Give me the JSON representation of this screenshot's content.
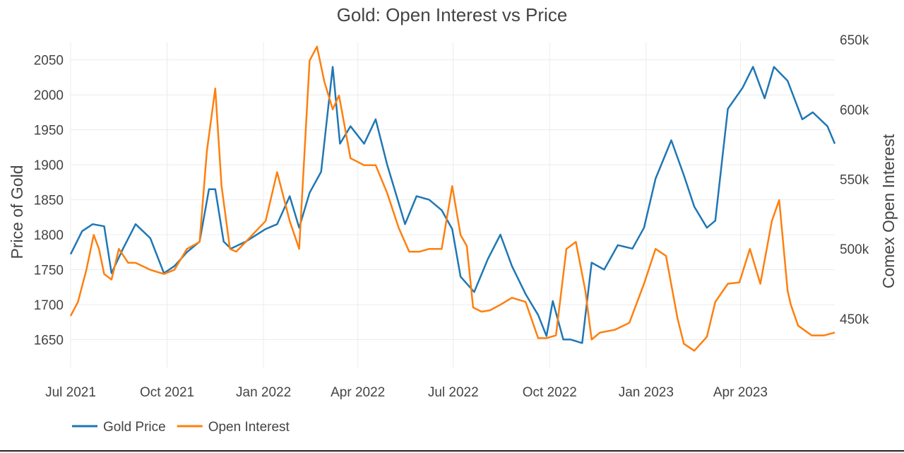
{
  "chart_data": {
    "type": "line",
    "title": "Gold: Open Interest vs Price",
    "xlabel": "",
    "ylabel_left": "Price of Gold",
    "ylabel_right": "Comex Open Interest",
    "x_ticks": [
      "Jul 2021",
      "Oct 2021",
      "Jan 2022",
      "Apr 2022",
      "Jul 2022",
      "Oct 2022",
      "Jan 2023",
      "Apr 2023"
    ],
    "x_tick_dates": [
      "2021-07-01",
      "2021-10-01",
      "2022-01-01",
      "2022-04-01",
      "2022-07-01",
      "2022-10-01",
      "2023-01-01",
      "2023-04-01"
    ],
    "xlim": [
      "2021-07-01",
      "2023-06-30"
    ],
    "y_left_ticks": [
      "1650",
      "1700",
      "1750",
      "1800",
      "1850",
      "1900",
      "1950",
      "2000",
      "2050"
    ],
    "y_right_ticks": [
      "450k",
      "500k",
      "550k",
      "600k",
      "650k"
    ],
    "ylim_left": [
      1610,
      2075
    ],
    "ylim_right": [
      415000,
      648000
    ],
    "grid": true,
    "legend_position": "bottom-left",
    "series": [
      {
        "name": "Gold Price",
        "axis": "left",
        "color": "#1f77b4",
        "x": [
          "2021-07-01",
          "2021-07-12",
          "2021-07-22",
          "2021-08-02",
          "2021-08-09",
          "2021-08-20",
          "2021-09-01",
          "2021-09-15",
          "2021-09-28",
          "2021-10-08",
          "2021-10-20",
          "2021-11-01",
          "2021-11-10",
          "2021-11-16",
          "2021-11-24",
          "2021-12-01",
          "2021-12-15",
          "2022-01-03",
          "2022-01-14",
          "2022-01-26",
          "2022-02-04",
          "2022-02-14",
          "2022-02-25",
          "2022-03-08",
          "2022-03-15",
          "2022-03-25",
          "2022-04-07",
          "2022-04-18",
          "2022-04-29",
          "2022-05-10",
          "2022-05-16",
          "2022-05-27",
          "2022-06-08",
          "2022-06-20",
          "2022-06-30",
          "2022-07-08",
          "2022-07-21",
          "2022-08-03",
          "2022-08-15",
          "2022-08-26",
          "2022-09-08",
          "2022-09-20",
          "2022-09-28",
          "2022-10-04",
          "2022-10-14",
          "2022-10-21",
          "2022-11-01",
          "2022-11-10",
          "2022-11-22",
          "2022-12-05",
          "2022-12-19",
          "2022-12-30",
          "2023-01-10",
          "2023-01-25",
          "2023-02-06",
          "2023-02-16",
          "2023-02-28",
          "2023-03-08",
          "2023-03-20",
          "2023-04-03",
          "2023-04-13",
          "2023-04-24",
          "2023-05-03",
          "2023-05-16",
          "2023-05-30",
          "2023-06-09",
          "2023-06-23",
          "2023-06-30"
        ],
        "values": [
          1772,
          1805,
          1815,
          1812,
          1745,
          1780,
          1815,
          1795,
          1745,
          1755,
          1775,
          1790,
          1865,
          1865,
          1790,
          1780,
          1790,
          1808,
          1815,
          1855,
          1810,
          1860,
          1890,
          2040,
          1930,
          1955,
          1930,
          1965,
          1900,
          1845,
          1815,
          1855,
          1850,
          1835,
          1808,
          1740,
          1718,
          1765,
          1800,
          1755,
          1715,
          1685,
          1655,
          1705,
          1650,
          1650,
          1645,
          1760,
          1750,
          1785,
          1780,
          1810,
          1880,
          1935,
          1885,
          1840,
          1810,
          1820,
          1980,
          2010,
          2040,
          1995,
          2040,
          2020,
          1965,
          1975,
          1955,
          1930
        ]
      },
      {
        "name": "Open Interest",
        "axis": "right",
        "color": "#ff7f0e",
        "x": [
          "2021-07-01",
          "2021-07-08",
          "2021-07-16",
          "2021-07-23",
          "2021-07-28",
          "2021-08-02",
          "2021-08-09",
          "2021-08-16",
          "2021-08-25",
          "2021-09-01",
          "2021-09-15",
          "2021-09-28",
          "2021-10-08",
          "2021-10-20",
          "2021-11-01",
          "2021-11-08",
          "2021-11-16",
          "2021-11-22",
          "2021-11-30",
          "2021-12-06",
          "2021-12-15",
          "2022-01-03",
          "2022-01-14",
          "2022-01-26",
          "2022-02-04",
          "2022-02-14",
          "2022-02-21",
          "2022-02-28",
          "2022-03-08",
          "2022-03-14",
          "2022-03-25",
          "2022-04-07",
          "2022-04-18",
          "2022-04-29",
          "2022-05-10",
          "2022-05-20",
          "2022-05-30",
          "2022-06-08",
          "2022-06-20",
          "2022-06-30",
          "2022-07-08",
          "2022-07-14",
          "2022-07-20",
          "2022-07-28",
          "2022-08-05",
          "2022-08-15",
          "2022-08-26",
          "2022-09-08",
          "2022-09-20",
          "2022-09-28",
          "2022-10-07",
          "2022-10-17",
          "2022-10-26",
          "2022-11-04",
          "2022-11-10",
          "2022-11-18",
          "2022-12-02",
          "2022-12-16",
          "2022-12-30",
          "2023-01-10",
          "2023-01-20",
          "2023-01-31",
          "2023-02-06",
          "2023-02-16",
          "2023-02-28",
          "2023-03-08",
          "2023-03-20",
          "2023-03-31",
          "2023-04-10",
          "2023-04-20",
          "2023-05-01",
          "2023-05-08",
          "2023-05-16",
          "2023-05-19",
          "2023-05-26",
          "2023-06-08",
          "2023-06-20",
          "2023-06-30"
        ],
        "values": [
          452000,
          462000,
          485000,
          510000,
          500000,
          482000,
          478000,
          500000,
          490000,
          490000,
          485000,
          482000,
          485000,
          500000,
          505000,
          570000,
          615000,
          545000,
          500000,
          498000,
          505000,
          520000,
          555000,
          520000,
          500000,
          635000,
          645000,
          620000,
          600000,
          610000,
          565000,
          560000,
          560000,
          540000,
          515000,
          498000,
          498000,
          500000,
          500000,
          545000,
          510000,
          502000,
          458000,
          455000,
          456000,
          460000,
          465000,
          462000,
          436000,
          436000,
          438000,
          500000,
          505000,
          470000,
          435000,
          440000,
          442000,
          447000,
          475000,
          500000,
          495000,
          450000,
          432000,
          427000,
          437000,
          462000,
          475000,
          476000,
          500000,
          475000,
          520000,
          535000,
          470000,
          460000,
          445000,
          438000,
          438000,
          440000
        ]
      }
    ]
  }
}
